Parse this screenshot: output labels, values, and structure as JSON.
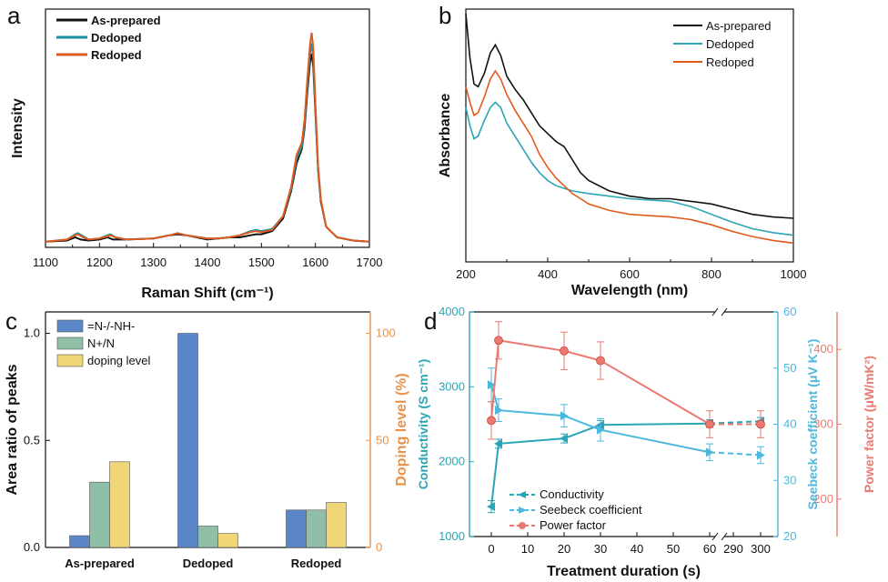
{
  "chart_data": [
    {
      "panel": "a",
      "type": "line",
      "xlabel": "Raman Shift (cm⁻¹)",
      "ylabel": "Intensity",
      "xlim": [
        1100,
        1700
      ],
      "xticks": [
        1100,
        1200,
        1300,
        1400,
        1500,
        1600,
        1700
      ],
      "legend": "top-left",
      "series": [
        {
          "name": "As-prepared",
          "color": "#111111",
          "x": [
            1100,
            1140,
            1155,
            1165,
            1180,
            1200,
            1215,
            1225,
            1250,
            1300,
            1330,
            1345,
            1360,
            1400,
            1420,
            1440,
            1460,
            1480,
            1490,
            1500,
            1520,
            1540,
            1555,
            1565,
            1575,
            1580,
            1585,
            1590,
            1593,
            1596,
            1600,
            1605,
            1610,
            1620,
            1640,
            1670,
            1700
          ],
          "y": [
            0.01,
            0.015,
            0.03,
            0.02,
            0.015,
            0.02,
            0.03,
            0.02,
            0.02,
            0.025,
            0.04,
            0.045,
            0.04,
            0.02,
            0.025,
            0.03,
            0.03,
            0.04,
            0.045,
            0.045,
            0.06,
            0.12,
            0.25,
            0.38,
            0.45,
            0.55,
            0.72,
            0.86,
            0.9,
            0.84,
            0.62,
            0.35,
            0.2,
            0.08,
            0.03,
            0.015,
            0.01
          ]
        },
        {
          "name": "Dedoped",
          "color": "#1a8fa3",
          "x": [
            1100,
            1140,
            1155,
            1160,
            1170,
            1180,
            1200,
            1215,
            1220,
            1230,
            1250,
            1300,
            1330,
            1345,
            1360,
            1400,
            1420,
            1440,
            1460,
            1480,
            1490,
            1500,
            1520,
            1540,
            1555,
            1565,
            1575,
            1580,
            1585,
            1590,
            1593,
            1596,
            1600,
            1605,
            1610,
            1620,
            1640,
            1670,
            1700
          ],
          "y": [
            0.01,
            0.02,
            0.045,
            0.05,
            0.035,
            0.02,
            0.025,
            0.04,
            0.045,
            0.03,
            0.02,
            0.025,
            0.04,
            0.05,
            0.04,
            0.025,
            0.025,
            0.03,
            0.04,
            0.06,
            0.065,
            0.06,
            0.07,
            0.13,
            0.26,
            0.4,
            0.46,
            0.57,
            0.75,
            0.9,
            0.95,
            0.88,
            0.64,
            0.36,
            0.21,
            0.08,
            0.03,
            0.015,
            0.01
          ]
        },
        {
          "name": "Redoped",
          "color": "#e05a1c",
          "x": [
            1100,
            1140,
            1155,
            1160,
            1170,
            1180,
            1200,
            1215,
            1220,
            1230,
            1250,
            1300,
            1330,
            1345,
            1360,
            1400,
            1420,
            1440,
            1460,
            1480,
            1490,
            1500,
            1520,
            1540,
            1555,
            1565,
            1575,
            1580,
            1585,
            1590,
            1593,
            1596,
            1600,
            1605,
            1610,
            1620,
            1640,
            1670,
            1700
          ],
          "y": [
            0.01,
            0.02,
            0.04,
            0.045,
            0.03,
            0.02,
            0.025,
            0.035,
            0.04,
            0.03,
            0.02,
            0.025,
            0.04,
            0.05,
            0.04,
            0.025,
            0.025,
            0.03,
            0.04,
            0.055,
            0.06,
            0.055,
            0.065,
            0.13,
            0.27,
            0.42,
            0.48,
            0.59,
            0.78,
            0.94,
            1.0,
            0.93,
            0.66,
            0.37,
            0.21,
            0.08,
            0.03,
            0.015,
            0.01
          ]
        }
      ]
    },
    {
      "panel": "b",
      "type": "line",
      "xlabel": "Wavelength (nm)",
      "ylabel": "Absorbance",
      "xlim": [
        200,
        1000
      ],
      "xticks": [
        200,
        400,
        600,
        800,
        1000
      ],
      "legend": "top-right",
      "series": [
        {
          "name": "As-prepared",
          "color": "#111111",
          "x": [
            200,
            210,
            220,
            230,
            245,
            260,
            272,
            285,
            300,
            320,
            340,
            360,
            380,
            400,
            420,
            440,
            460,
            480,
            500,
            550,
            600,
            650,
            700,
            750,
            800,
            850,
            900,
            950,
            1000
          ],
          "y": [
            1.05,
            0.88,
            0.78,
            0.77,
            0.82,
            0.9,
            0.93,
            0.89,
            0.81,
            0.76,
            0.72,
            0.67,
            0.62,
            0.59,
            0.56,
            0.54,
            0.49,
            0.44,
            0.41,
            0.37,
            0.35,
            0.34,
            0.34,
            0.33,
            0.32,
            0.3,
            0.28,
            0.27,
            0.265
          ]
        },
        {
          "name": "Dedoped",
          "color": "#2aa5b5",
          "x": [
            200,
            210,
            220,
            230,
            245,
            260,
            272,
            285,
            300,
            320,
            340,
            360,
            380,
            400,
            420,
            440,
            460,
            480,
            500,
            550,
            600,
            650,
            700,
            750,
            800,
            850,
            900,
            950,
            1000
          ],
          "y": [
            0.69,
            0.62,
            0.57,
            0.58,
            0.64,
            0.69,
            0.71,
            0.69,
            0.63,
            0.58,
            0.53,
            0.48,
            0.44,
            0.41,
            0.39,
            0.38,
            0.37,
            0.365,
            0.36,
            0.35,
            0.34,
            0.335,
            0.33,
            0.31,
            0.28,
            0.25,
            0.225,
            0.21,
            0.2
          ]
        },
        {
          "name": "Redoped",
          "color": "#e05a1c",
          "x": [
            200,
            210,
            220,
            230,
            245,
            260,
            272,
            285,
            300,
            320,
            340,
            360,
            380,
            400,
            420,
            440,
            460,
            480,
            500,
            550,
            600,
            650,
            700,
            750,
            800,
            850,
            900,
            950,
            1000
          ],
          "y": [
            0.77,
            0.71,
            0.66,
            0.67,
            0.73,
            0.8,
            0.83,
            0.8,
            0.74,
            0.68,
            0.63,
            0.58,
            0.51,
            0.46,
            0.42,
            0.39,
            0.36,
            0.34,
            0.32,
            0.295,
            0.28,
            0.275,
            0.27,
            0.26,
            0.24,
            0.215,
            0.195,
            0.18,
            0.17
          ]
        }
      ]
    },
    {
      "panel": "c",
      "type": "bar",
      "categories": [
        "As-prepared",
        "Dedoped",
        "Redoped"
      ],
      "ylabel": "Area ratio of peaks",
      "y2label": "Doping level (%)",
      "ylim": [
        0,
        1.1
      ],
      "yticks": [
        0.0,
        0.5,
        1.0
      ],
      "y2lim": [
        0,
        110
      ],
      "y2ticks": [
        0,
        50,
        100
      ],
      "legend": "top-left",
      "series": [
        {
          "name": "=N-/-NH-",
          "axis": "left",
          "color": "#5b86c8",
          "values": [
            0.055,
            1.0,
            0.175
          ]
        },
        {
          "name": "N+/N",
          "axis": "left",
          "color": "#8fbfa6",
          "values": [
            0.305,
            0.1,
            0.175
          ]
        },
        {
          "name": "doping level",
          "axis": "right",
          "color": "#f0d676",
          "values": [
            40,
            6.5,
            21
          ]
        }
      ]
    },
    {
      "panel": "d",
      "type": "line",
      "xlabel": "Treatment duration (s)",
      "ylabel": "Conductivity (S cm⁻¹)",
      "y2label": "Seebeck coefficient (μV K⁻¹)",
      "y3label": "Power factor  (μW/mK²)",
      "xticks": [
        "0",
        "10",
        "20",
        "30",
        "40",
        "50",
        "60",
        "290",
        "300"
      ],
      "axis_break": [
        60,
        290
      ],
      "ylim": [
        1000,
        4000
      ],
      "yticks": [
        1000,
        2000,
        3000,
        4000
      ],
      "y2lim": [
        20,
        60
      ],
      "y2ticks": [
        20,
        30,
        40,
        50,
        60
      ],
      "y3lim": [
        150,
        450
      ],
      "y3ticks": [
        200,
        300,
        400
      ],
      "legend": "bottom-left",
      "series": [
        {
          "name": "Conductivity",
          "axis": "left",
          "color": "#2aa5b5",
          "marker": "left-triangle",
          "x": [
            0,
            2,
            20,
            30,
            60,
            300
          ],
          "y": [
            1400,
            2240,
            2310,
            2490,
            2510,
            2540
          ],
          "err": [
            80,
            60,
            60,
            60,
            50,
            50
          ]
        },
        {
          "name": "Seebeck coefficient",
          "axis": "right",
          "color": "#4cb8dd",
          "marker": "right-triangle",
          "x": [
            0,
            2,
            20,
            30,
            60,
            300
          ],
          "y": [
            47,
            42.5,
            41.5,
            39,
            35,
            34.5
          ],
          "err": [
            3,
            2,
            2,
            2,
            1.5,
            1.5
          ]
        },
        {
          "name": "Power factor",
          "axis": "third",
          "color": "#ea7a70",
          "marker": "circle",
          "x": [
            0,
            2,
            20,
            30,
            60,
            300
          ],
          "y": [
            305,
            412,
            398,
            385,
            300,
            300
          ],
          "err": [
            25,
            25,
            25,
            25,
            18,
            18
          ]
        }
      ]
    }
  ]
}
